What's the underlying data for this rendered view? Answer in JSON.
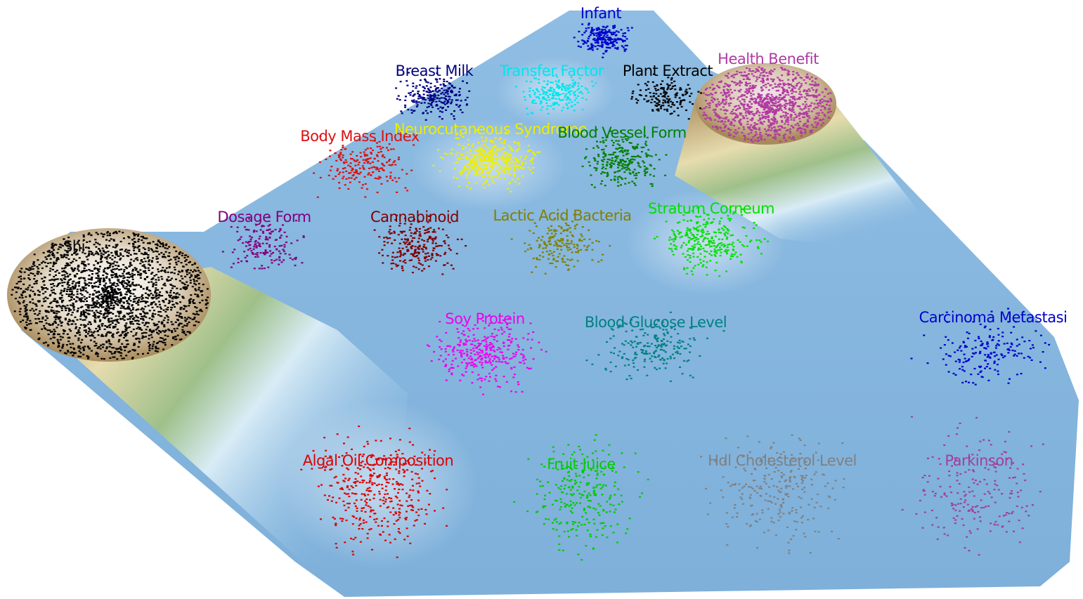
{
  "clusters": [
    {
      "label": "Infant",
      "color": "#0000cc"
    },
    {
      "label": "Breast Milk",
      "color": "#000080"
    },
    {
      "label": "Transfer Factor",
      "color": "#00e5ee"
    },
    {
      "label": "Plant Extract",
      "color": "#000000"
    },
    {
      "label": "Health Benefit",
      "color": "#b03aa0"
    },
    {
      "label": "Body Mass Index",
      "color": "#dd1111"
    },
    {
      "label": "Neurocutaneous Syndrome",
      "color": "#eeee00"
    },
    {
      "label": "Blood Vessel Form",
      "color": "#008000"
    },
    {
      "label": "Dosage Form",
      "color": "#800080"
    },
    {
      "label": "Cannabinoid",
      "color": "#800000"
    },
    {
      "label": "Lactic Acid Bacteria",
      "color": "#808000"
    },
    {
      "label": "Stratum Corneum",
      "color": "#00e000"
    },
    {
      "label": "Shi",
      "color": "#000000"
    },
    {
      "label": "Soy Protein",
      "color": "#ee00ee"
    },
    {
      "label": "Blood Glucose Level",
      "color": "#008080"
    },
    {
      "label": "Carcinoma Metastasi",
      "color": "#0000cc"
    },
    {
      "label": "Algal Oil Composition",
      "color": "#dd0000"
    },
    {
      "label": "Fruit Juice",
      "color": "#00cc00"
    },
    {
      "label": "Hdl Cholesterol Level",
      "color": "#808080"
    },
    {
      "label": "Parkinson",
      "color": "#a040a0"
    }
  ]
}
